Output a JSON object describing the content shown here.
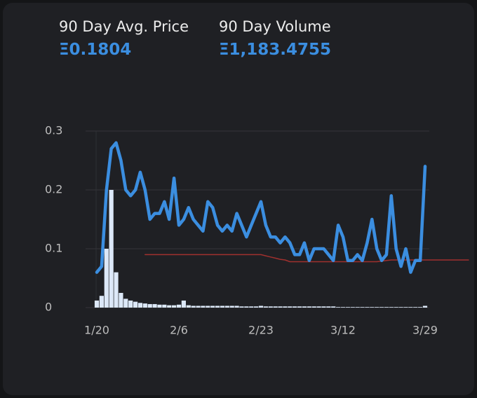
{
  "header": {
    "stats": [
      {
        "label": "90 Day Avg. Price",
        "value": "Ξ0.1804"
      },
      {
        "label": "90 Day Volume",
        "value": "Ξ1,183.4755"
      }
    ]
  },
  "chart_data": {
    "type": "line",
    "categories": [
      "1/20",
      null,
      null,
      null,
      null,
      null,
      null,
      null,
      null,
      null,
      null,
      null,
      null,
      null,
      null,
      null,
      null,
      "2/6",
      null,
      null,
      null,
      null,
      null,
      null,
      null,
      null,
      null,
      null,
      null,
      null,
      null,
      null,
      null,
      null,
      "2/23",
      null,
      null,
      null,
      null,
      null,
      null,
      null,
      null,
      null,
      null,
      null,
      null,
      null,
      null,
      null,
      null,
      "3/12",
      null,
      null,
      null,
      null,
      null,
      null,
      null,
      null,
      null,
      null,
      null,
      null,
      null,
      null,
      null,
      null,
      "3/29",
      null,
      null,
      null,
      null,
      null,
      null,
      null,
      null,
      null
    ],
    "ylim": [
      0,
      0.3
    ],
    "yticks": [
      0,
      0.1,
      0.2,
      0.3
    ],
    "grid": true,
    "series": [
      {
        "type": "bar",
        "color": "#dce8f8",
        "values": [
          0.012,
          0.02,
          0.1,
          0.2,
          0.06,
          0.025,
          0.015,
          0.012,
          0.01,
          0.008,
          0.007,
          0.006,
          0.006,
          0.005,
          0.005,
          0.004,
          0.004,
          0.005,
          0.012,
          0.004,
          0.003,
          0.003,
          0.003,
          0.003,
          0.003,
          0.003,
          0.003,
          0.003,
          0.003,
          0.003,
          0.002,
          0.002,
          0.002,
          0.002,
          0.003,
          0.002,
          0.002,
          0.002,
          0.002,
          0.002,
          0.002,
          0.002,
          0.002,
          0.002,
          0.002,
          0.002,
          0.002,
          0.002,
          0.002,
          0.002,
          0.001,
          0.001,
          0.001,
          0.001,
          0.001,
          0.001,
          0.001,
          0.001,
          0.001,
          0.001,
          0.001,
          0.001,
          0.001,
          0.001,
          0.001,
          0.001,
          0.001,
          0.001,
          0.003,
          null,
          null,
          null,
          null,
          null,
          null,
          null,
          null,
          null
        ]
      },
      {
        "type": "line",
        "color": "#a0302e",
        "width": 1.5,
        "values": [
          null,
          null,
          null,
          null,
          null,
          null,
          null,
          null,
          null,
          null,
          0.09,
          0.09,
          0.09,
          0.09,
          0.09,
          0.09,
          0.09,
          0.09,
          0.09,
          0.09,
          0.09,
          0.09,
          0.09,
          0.09,
          0.09,
          0.09,
          0.09,
          0.09,
          0.09,
          0.09,
          0.09,
          0.09,
          0.09,
          0.09,
          0.09,
          0.088,
          0.086,
          0.084,
          0.082,
          0.081,
          0.078,
          0.078,
          0.078,
          0.078,
          0.078,
          0.078,
          0.078,
          0.078,
          0.078,
          0.078,
          0.078,
          0.078,
          0.078,
          0.078,
          0.078,
          0.078,
          0.078,
          0.078,
          0.078,
          0.079,
          0.08,
          0.081,
          0.081,
          0.081,
          0.081,
          0.081,
          0.081,
          0.081,
          0.081,
          0.081,
          0.081,
          0.081,
          0.081,
          0.081,
          0.081,
          0.081,
          0.081,
          0.081
        ]
      },
      {
        "type": "line",
        "color": "#3b8ee0",
        "width": 4.5,
        "values": [
          0.06,
          0.07,
          0.2,
          0.27,
          0.28,
          0.25,
          0.2,
          0.19,
          0.2,
          0.23,
          0.2,
          0.15,
          0.16,
          0.16,
          0.18,
          0.15,
          0.22,
          0.14,
          0.15,
          0.17,
          0.15,
          0.14,
          0.13,
          0.18,
          0.17,
          0.14,
          0.13,
          0.14,
          0.13,
          0.16,
          0.14,
          0.12,
          0.14,
          0.16,
          0.18,
          0.14,
          0.12,
          0.12,
          0.11,
          0.12,
          0.11,
          0.09,
          0.09,
          0.11,
          0.08,
          0.1,
          0.1,
          0.1,
          0.09,
          0.08,
          0.14,
          0.12,
          0.08,
          0.08,
          0.09,
          0.08,
          0.11,
          0.15,
          0.1,
          0.08,
          0.09,
          0.19,
          0.1,
          0.07,
          0.1,
          0.06,
          0.08,
          0.08,
          0.24,
          null,
          null,
          null,
          null,
          null,
          null,
          null,
          null,
          null
        ]
      }
    ]
  }
}
